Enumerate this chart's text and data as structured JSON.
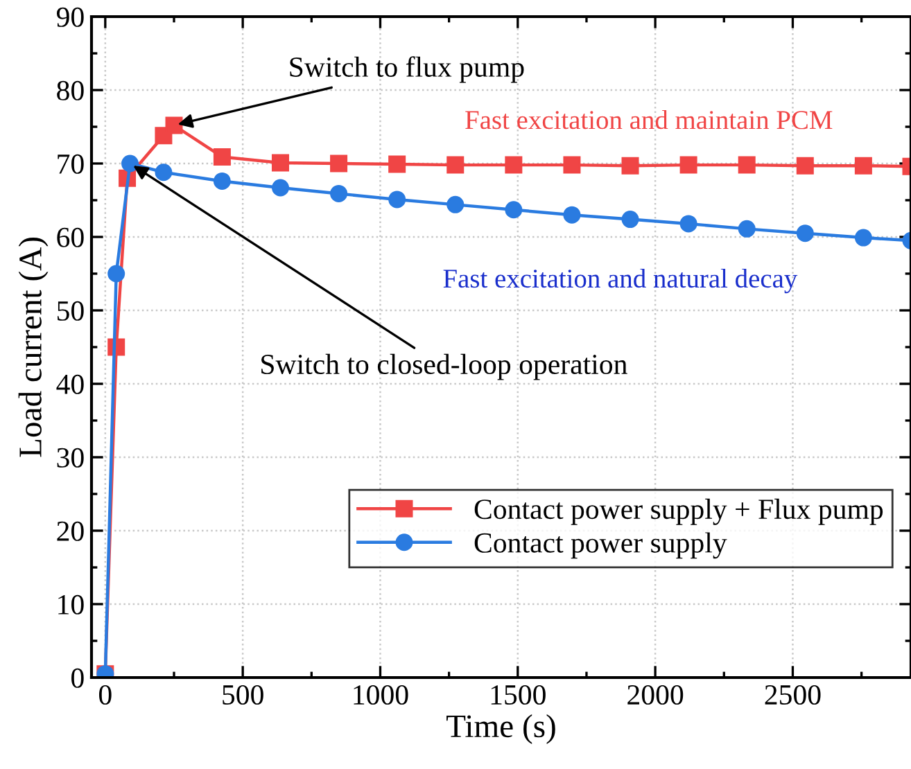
{
  "chart_data": {
    "type": "line",
    "xlabel": "Time (s)",
    "ylabel": "Load current (A)",
    "xlim": [
      -50,
      2930
    ],
    "ylim": [
      0,
      90
    ],
    "xticks": [
      0,
      500,
      1000,
      1500,
      2000,
      2500
    ],
    "yticks": [
      0,
      10,
      20,
      30,
      40,
      50,
      60,
      70,
      80,
      90
    ],
    "grid": true,
    "legend": "bottom right",
    "line_style": "solid",
    "series": [
      {
        "name": "Contact power supply + Flux pump",
        "color": "#f04545",
        "marker": "square",
        "x": [
          0,
          40,
          80,
          212,
          250,
          425,
          637,
          849,
          1061,
          1273,
          1485,
          1697,
          1909,
          2121,
          2333,
          2545,
          2757,
          2930
        ],
        "values": [
          0.5,
          45,
          68,
          73.8,
          75.2,
          70.9,
          70.1,
          70.0,
          69.9,
          69.8,
          69.8,
          69.8,
          69.7,
          69.8,
          69.8,
          69.7,
          69.7,
          69.6
        ]
      },
      {
        "name": "Contact power supply",
        "color": "#2a7be0",
        "marker": "circle",
        "x": [
          0,
          40,
          90,
          212,
          425,
          637,
          849,
          1061,
          1273,
          1485,
          1697,
          1909,
          2121,
          2333,
          2545,
          2757,
          2930
        ],
        "values": [
          0.5,
          55,
          70,
          68.8,
          67.6,
          66.7,
          65.9,
          65.1,
          64.4,
          63.7,
          63.0,
          62.4,
          61.8,
          61.1,
          60.5,
          59.9,
          59.5
        ]
      }
    ],
    "annotations": [
      {
        "text": "Switch to flux pump",
        "x": 250,
        "y": 75.2
      },
      {
        "text": "Switch to closed-loop operation",
        "x": 90,
        "y": 70
      },
      "Fast excitation and maintain PCM",
      "Fast excitation and natural decay"
    ]
  }
}
